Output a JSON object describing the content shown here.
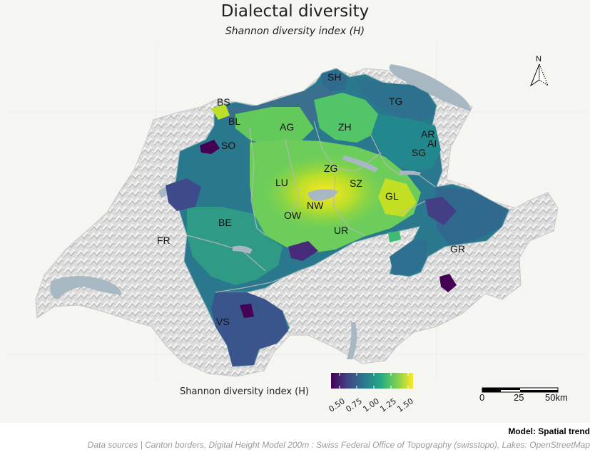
{
  "header": {
    "title": "Dialectal diversity",
    "subtitle": "Shannon diversity index (H)"
  },
  "map": {
    "cantons": [
      {
        "code": "SH"
      },
      {
        "code": "BS"
      },
      {
        "code": "TG"
      },
      {
        "code": "BL"
      },
      {
        "code": "AG"
      },
      {
        "code": "ZH"
      },
      {
        "code": "AR"
      },
      {
        "code": "AI"
      },
      {
        "code": "SO"
      },
      {
        "code": "SG"
      },
      {
        "code": "ZG"
      },
      {
        "code": "LU"
      },
      {
        "code": "SZ"
      },
      {
        "code": "GL"
      },
      {
        "code": "NW"
      },
      {
        "code": "OW"
      },
      {
        "code": "BE"
      },
      {
        "code": "UR"
      },
      {
        "code": "FR"
      },
      {
        "code": "GR"
      },
      {
        "code": "VS"
      }
    ],
    "colors": {
      "viridis": [
        "#440154",
        "#414487",
        "#2a788e",
        "#22a884",
        "#7ad151",
        "#fde725"
      ],
      "relief": "#d6d6d6",
      "lakes": "#a8b8c2",
      "background": "#f5f5f2"
    }
  },
  "legend": {
    "title": "Shannon diversity index (H)",
    "ticks": [
      "0.50",
      "0.75",
      "1.00",
      "1.25",
      "1.50"
    ],
    "range": [
      0.4,
      1.6
    ]
  },
  "scalebar": {
    "labels": [
      "0",
      "25",
      "50km"
    ]
  },
  "north_arrow": {
    "label": "N",
    "icon": "north-arrow-icon"
  },
  "captions": {
    "model": "Model: Spatial trend",
    "sources": "Data sources | Canton borders, Digital Height Model 200m : Swiss Federal Office of Topography (swisstopo), Lakes: OpenStreetMap"
  }
}
